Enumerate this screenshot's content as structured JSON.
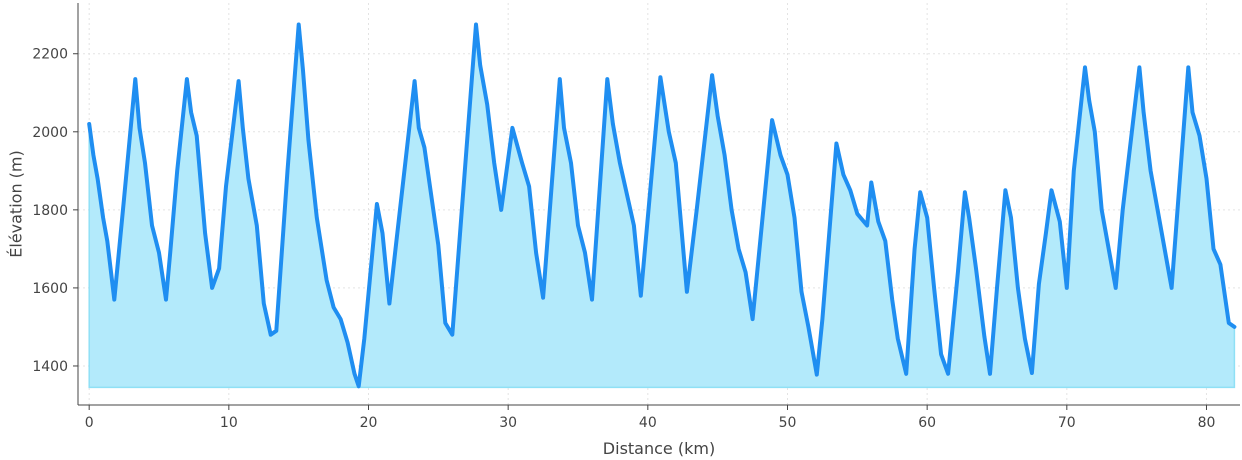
{
  "chart_data": {
    "type": "area",
    "title": "",
    "xlabel": "Distance (km)",
    "ylabel": "Élévation (m)",
    "xlim": [
      -0.8,
      82.4
    ],
    "ylim": [
      1300,
      2330
    ],
    "x_ticks": [
      0,
      10,
      20,
      30,
      40,
      50,
      60,
      70,
      80
    ],
    "y_ticks": [
      1400,
      1600,
      1800,
      2000,
      2200
    ],
    "grid": true,
    "legend": "none",
    "fill_baseline": 1345,
    "colors": {
      "line": "#1f8ef1",
      "fill": "#b3eafb",
      "fill_edge": "#8fe0f5",
      "grid": "#e3e3e3",
      "axis": "#444444"
    },
    "series": [
      {
        "x": [
          0,
          0.3,
          0.6,
          1.0,
          1.3,
          1.8,
          2.5,
          3.3,
          3.6,
          4.0,
          4.5,
          5.0,
          5.5,
          5.8,
          6.3,
          7.0,
          7.3,
          7.7,
          8.3,
          8.8,
          9.3,
          9.8,
          10.7,
          11.0,
          11.4,
          12.0,
          12.5,
          13.0,
          13.4,
          14.2,
          15.0,
          15.3,
          15.7,
          16.3,
          17.0,
          17.5,
          18.0,
          18.5,
          19.0,
          19.3,
          19.7,
          20.6,
          21.0,
          21.5,
          22.0,
          23.3,
          23.6,
          24.0,
          25.0,
          25.5,
          26.0,
          27.7,
          28.0,
          28.5,
          29.0,
          29.5,
          30.3,
          31.0,
          31.5,
          32.0,
          32.5,
          33.7,
          34.0,
          34.5,
          35.0,
          35.5,
          36.0,
          37.1,
          37.5,
          38.0,
          39.0,
          39.5,
          40.9,
          41.5,
          42.0,
          42.8,
          43.5,
          44.6,
          45.0,
          45.5,
          46.0,
          46.5,
          47.0,
          47.5,
          48.9,
          49.5,
          50.0,
          50.5,
          51.0,
          51.5,
          52.1,
          52.5,
          53.5,
          54.0,
          54.5,
          55.0,
          55.7,
          56.0,
          56.5,
          57.0,
          57.5,
          57.9,
          58.5,
          59.1,
          59.5,
          60.0,
          60.5,
          61.0,
          61.5,
          62.2,
          62.7,
          63.0,
          63.5,
          64.1,
          64.5,
          65.0,
          65.6,
          66.0,
          66.5,
          67.0,
          67.5,
          68.0,
          68.5,
          68.9,
          69.5,
          70.0,
          70.5,
          71.3,
          71.6,
          72.0,
          72.5,
          73.0,
          73.5,
          74.0,
          75.2,
          75.5,
          76.0,
          76.5,
          77.0,
          77.5,
          78.7,
          79.0,
          79.5,
          80.0,
          80.5,
          81.0,
          81.6,
          82.0
        ],
        "y": [
          2020,
          1940,
          1880,
          1780,
          1720,
          1570,
          1830,
          2135,
          2010,
          1920,
          1760,
          1690,
          1570,
          1690,
          1900,
          2135,
          2050,
          1990,
          1740,
          1600,
          1650,
          1860,
          2130,
          2010,
          1880,
          1760,
          1560,
          1480,
          1490,
          1900,
          2275,
          2160,
          1980,
          1780,
          1620,
          1550,
          1520,
          1460,
          1380,
          1348,
          1470,
          1815,
          1740,
          1560,
          1720,
          2130,
          2010,
          1960,
          1710,
          1510,
          1480,
          2275,
          2170,
          2070,
          1920,
          1800,
          2010,
          1920,
          1860,
          1690,
          1575,
          2135,
          2010,
          1920,
          1760,
          1690,
          1570,
          2135,
          2020,
          1920,
          1760,
          1580,
          2140,
          2000,
          1920,
          1590,
          1800,
          2145,
          2040,
          1940,
          1800,
          1700,
          1640,
          1520,
          2030,
          1940,
          1890,
          1780,
          1590,
          1500,
          1378,
          1520,
          1970,
          1890,
          1850,
          1790,
          1760,
          1870,
          1770,
          1720,
          1570,
          1470,
          1380,
          1700,
          1845,
          1780,
          1600,
          1430,
          1380,
          1640,
          1845,
          1780,
          1650,
          1475,
          1380,
          1600,
          1850,
          1780,
          1600,
          1470,
          1382,
          1610,
          1740,
          1850,
          1770,
          1600,
          1900,
          2165,
          2080,
          2000,
          1800,
          1700,
          1600,
          1800,
          2165,
          2050,
          1900,
          1800,
          1700,
          1600,
          2165,
          2050,
          1990,
          1880,
          1700,
          1660,
          1510,
          1500
        ]
      }
    ]
  }
}
